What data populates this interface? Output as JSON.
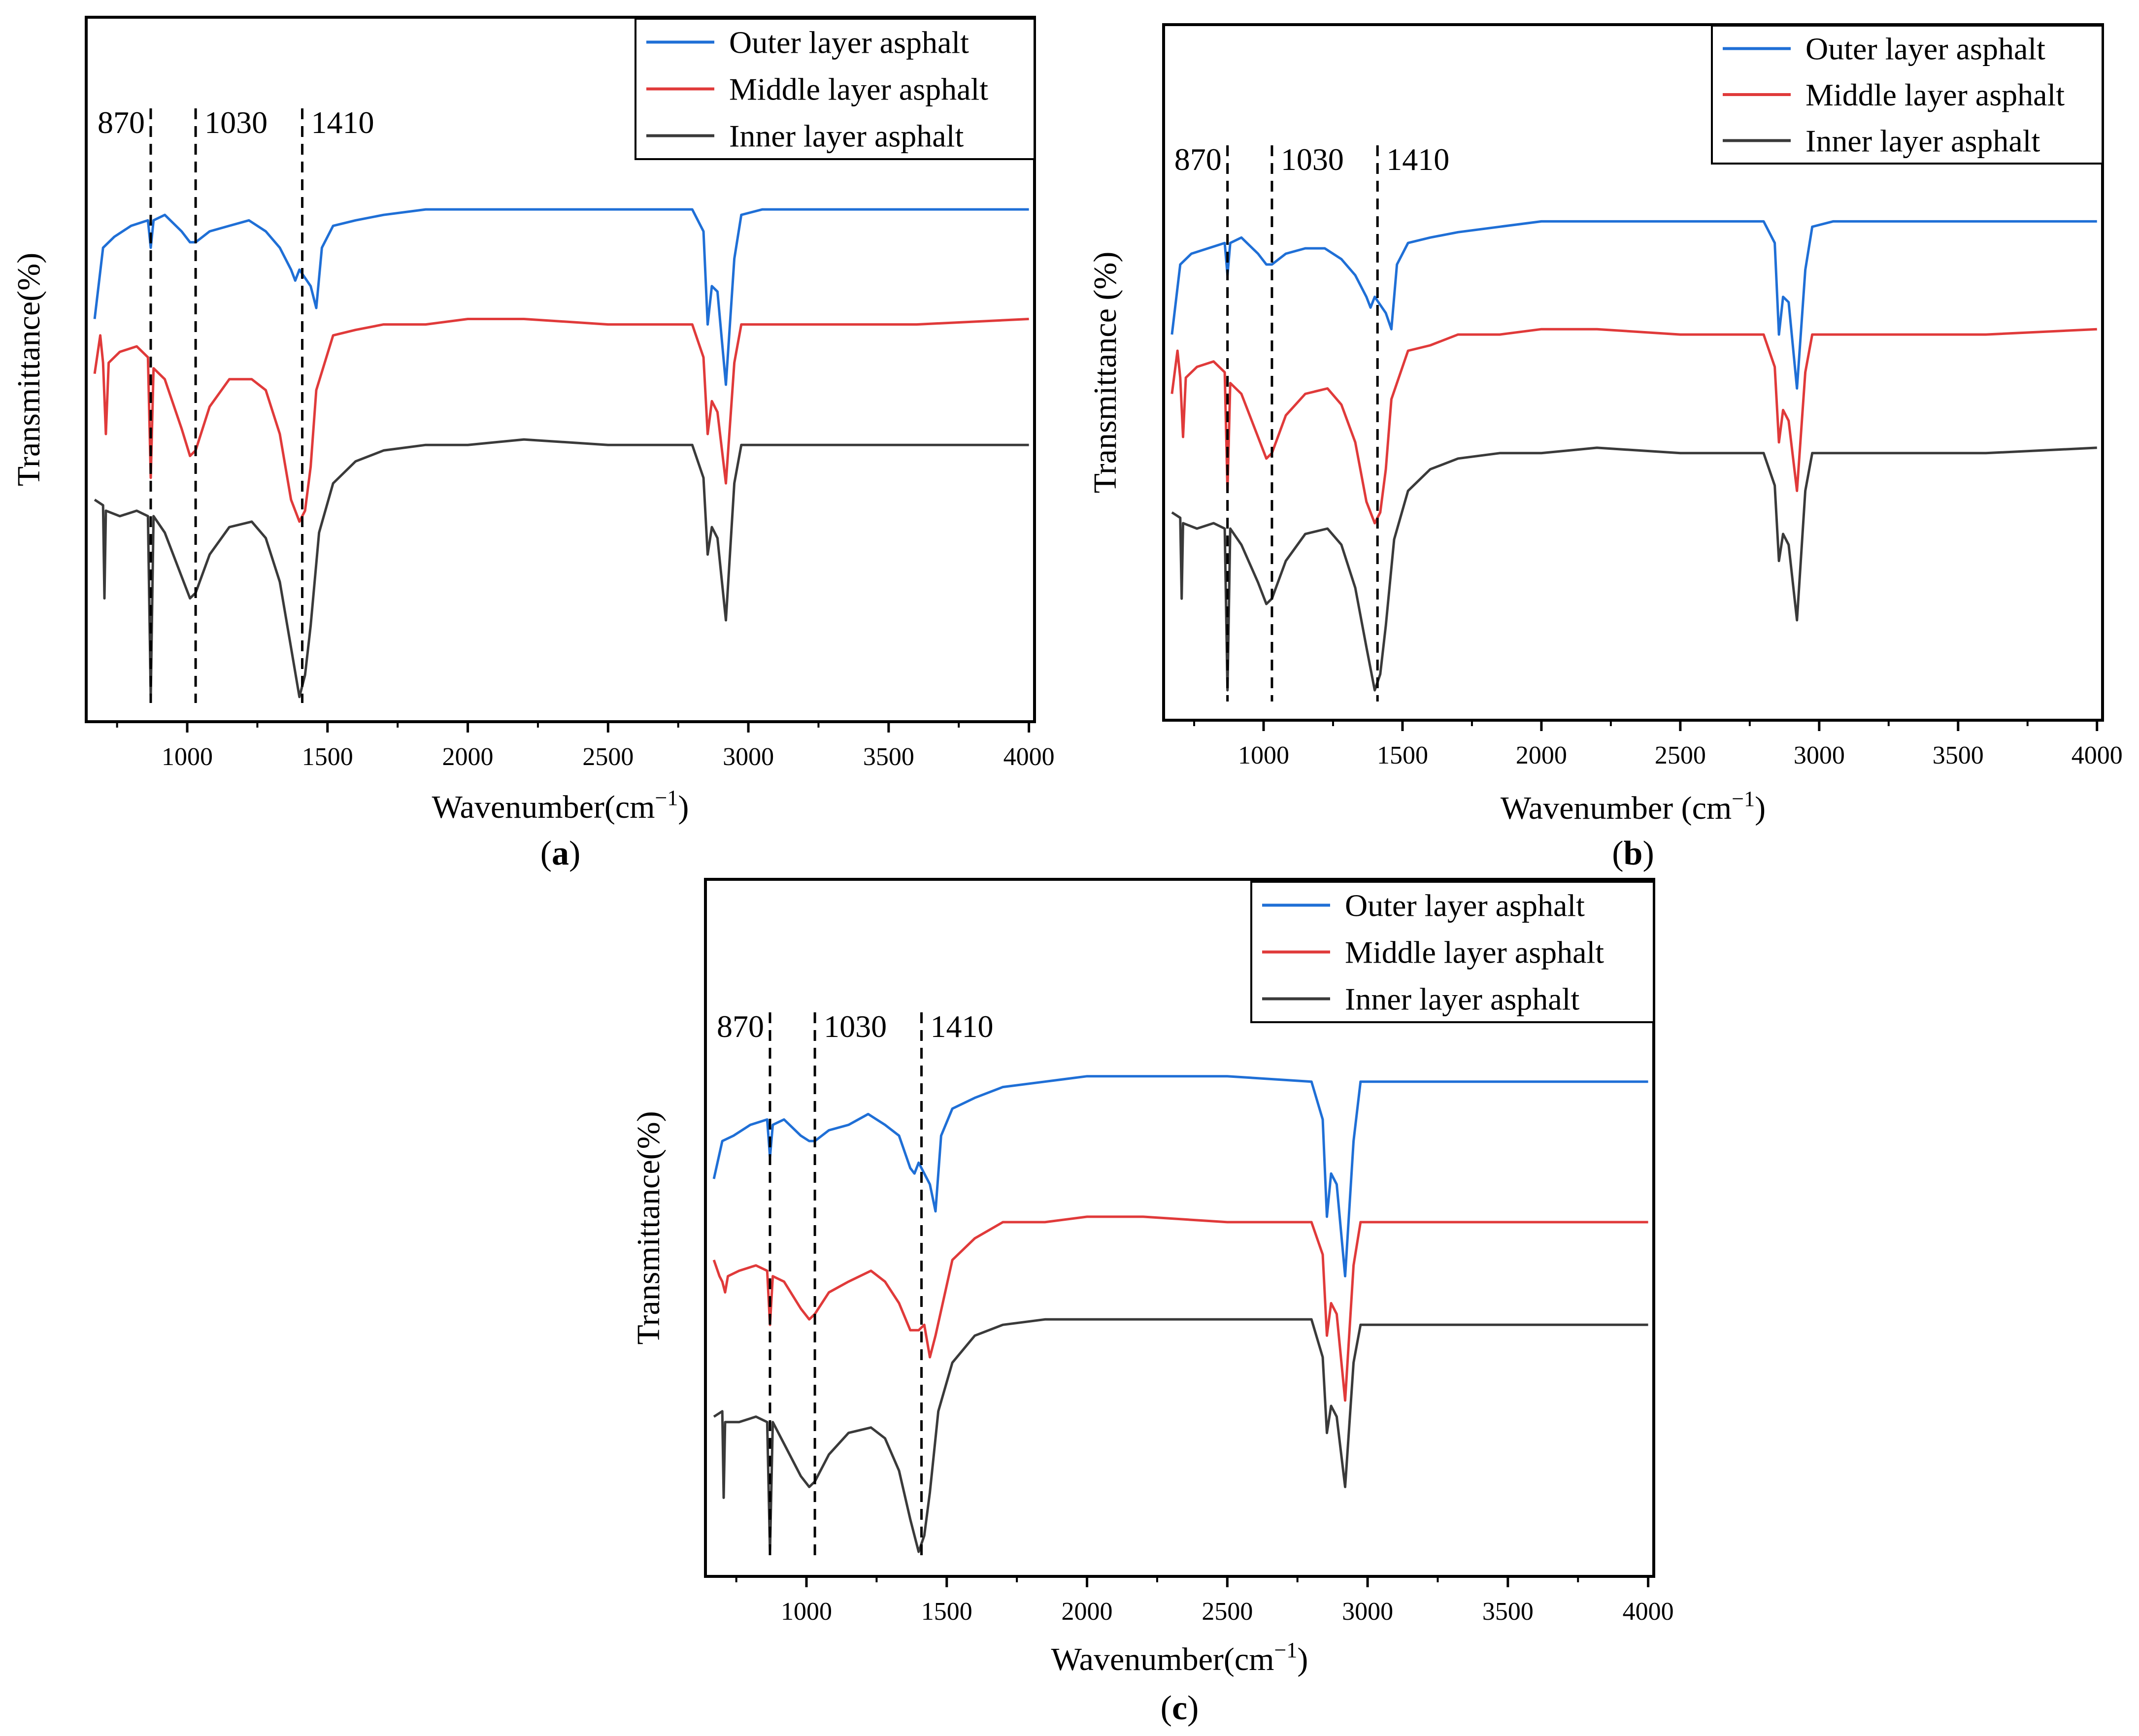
{
  "chart_data": [
    {
      "panel": "a",
      "type": "line",
      "panel_label": "(a)",
      "panel_letter": "a",
      "xlabel": "Wavenumber(cm",
      "xlabel_sup": "−1",
      "xlabel_close": ")",
      "ylabel": "Transmittance(%)",
      "xlim": [
        640,
        4020
      ],
      "ylim": [
        0,
        100
      ],
      "xticks": [
        1000,
        1500,
        2000,
        2500,
        3000,
        3500,
        4000
      ],
      "xtick_labels": [
        "1000",
        "1500",
        "2000",
        "2500",
        "3000",
        "3500",
        "4000"
      ],
      "peak_markers": [
        870,
        1030,
        1410
      ],
      "peak_labels": [
        "870",
        "1030",
        "1410"
      ],
      "legend": [
        "Outer layer asphalt",
        "Middle layer asphalt",
        "Inner layer asphalt"
      ],
      "series": [
        {
          "name": "Outer layer asphalt",
          "color": "#1f6fd6",
          "x": [
            670,
            700,
            740,
            800,
            860,
            870,
            880,
            920,
            980,
            1010,
            1030,
            1080,
            1150,
            1220,
            1280,
            1330,
            1370,
            1385,
            1400,
            1440,
            1460,
            1480,
            1520,
            1600,
            1700,
            1850,
            2000,
            2200,
            2500,
            2800,
            2840,
            2855,
            2870,
            2890,
            2920,
            2950,
            2975,
            3050,
            3300,
            3600,
            4000
          ],
          "y": [
            71,
            84,
            86,
            88,
            89,
            84,
            89,
            90,
            87,
            85,
            85,
            87,
            88,
            89,
            87,
            84,
            80,
            78,
            80,
            77,
            73,
            84,
            88,
            89,
            90,
            91,
            91,
            91,
            91,
            91,
            87,
            70,
            77,
            76,
            59,
            82,
            90,
            91,
            91,
            91,
            91
          ]
        },
        {
          "name": "Middle layer asphalt",
          "color": "#e03a3a",
          "x": [
            670,
            690,
            700,
            710,
            720,
            760,
            820,
            860,
            870,
            880,
            920,
            980,
            1010,
            1030,
            1080,
            1150,
            1230,
            1280,
            1330,
            1370,
            1400,
            1420,
            1440,
            1460,
            1520,
            1600,
            1700,
            1850,
            2000,
            2200,
            2500,
            2800,
            2840,
            2855,
            2870,
            2890,
            2920,
            2950,
            2975,
            3050,
            3300,
            3600,
            4000
          ],
          "y": [
            61,
            68,
            63,
            50,
            63,
            65,
            66,
            64,
            42,
            62,
            60,
            51,
            46,
            47,
            55,
            60,
            60,
            58,
            50,
            38,
            34,
            36,
            44,
            58,
            68,
            69,
            70,
            70,
            71,
            71,
            70,
            70,
            64,
            50,
            56,
            54,
            41,
            63,
            70,
            70,
            70,
            70,
            71
          ]
        },
        {
          "name": "Inner layer asphalt",
          "color": "#3a3a3a",
          "x": [
            670,
            700,
            705,
            710,
            760,
            820,
            860,
            870,
            880,
            920,
            980,
            1010,
            1030,
            1080,
            1150,
            1230,
            1280,
            1330,
            1370,
            1400,
            1420,
            1440,
            1470,
            1520,
            1600,
            1700,
            1850,
            2000,
            2200,
            2500,
            2800,
            2840,
            2855,
            2870,
            2890,
            2920,
            2950,
            2975,
            3050,
            3300,
            3600,
            4000
          ],
          "y": [
            38,
            37,
            20,
            36,
            35,
            36,
            35,
            2,
            35,
            32,
            24,
            20,
            21,
            28,
            33,
            34,
            31,
            23,
            11,
            2,
            6,
            15,
            32,
            41,
            45,
            47,
            48,
            48,
            49,
            48,
            48,
            42,
            28,
            33,
            31,
            16,
            41,
            48,
            48,
            48,
            48,
            48
          ]
        }
      ]
    },
    {
      "panel": "b",
      "type": "line",
      "panel_label": "(b)",
      "panel_letter": "b",
      "xlabel": "Wavenumber (cm",
      "xlabel_sup": "−1",
      "xlabel_close": ")",
      "ylabel": "Transmittance (%)",
      "xlim": [
        640,
        4020
      ],
      "ylim": [
        0,
        100
      ],
      "xticks": [
        1000,
        1500,
        2000,
        2500,
        3000,
        3500,
        4000
      ],
      "xtick_labels": [
        "1000",
        "1500",
        "2000",
        "2500",
        "3000",
        "3500",
        "4000"
      ],
      "peak_markers": [
        870,
        1030,
        1410
      ],
      "peak_labels": [
        "870",
        "1030",
        "1410"
      ],
      "legend": [
        "Outer layer asphalt",
        "Middle layer asphalt",
        "Inner layer asphalt"
      ],
      "series": [
        {
          "name": "Outer layer asphalt",
          "color": "#1f6fd6",
          "x": [
            670,
            700,
            740,
            800,
            860,
            870,
            880,
            920,
            980,
            1010,
            1030,
            1080,
            1150,
            1220,
            1280,
            1330,
            1370,
            1385,
            1400,
            1440,
            1460,
            1480,
            1520,
            1600,
            1700,
            1850,
            2000,
            2200,
            2500,
            2800,
            2840,
            2855,
            2870,
            2890,
            2920,
            2950,
            2975,
            3050,
            3300,
            3600,
            4000
          ],
          "y": [
            69,
            82,
            84,
            85,
            86,
            80,
            86,
            87,
            84,
            82,
            82,
            84,
            85,
            85,
            83,
            80,
            76,
            74,
            76,
            73,
            70,
            82,
            86,
            87,
            88,
            89,
            90,
            90,
            90,
            90,
            86,
            69,
            76,
            75,
            59,
            81,
            89,
            90,
            90,
            90,
            90
          ]
        },
        {
          "name": "Middle layer asphalt",
          "color": "#e03a3a",
          "x": [
            670,
            690,
            700,
            710,
            720,
            760,
            820,
            860,
            870,
            880,
            920,
            980,
            1010,
            1030,
            1080,
            1150,
            1230,
            1280,
            1330,
            1370,
            1400,
            1420,
            1440,
            1460,
            1520,
            1600,
            1700,
            1850,
            2000,
            2200,
            2500,
            2800,
            2840,
            2855,
            2870,
            2890,
            2920,
            2950,
            2975,
            3050,
            3300,
            3600,
            4000
          ],
          "y": [
            58,
            66,
            61,
            50,
            61,
            63,
            64,
            62,
            40,
            60,
            58,
            50,
            46,
            47,
            54,
            58,
            59,
            56,
            49,
            38,
            34,
            36,
            44,
            57,
            66,
            67,
            69,
            69,
            70,
            70,
            69,
            69,
            63,
            49,
            55,
            53,
            40,
            62,
            69,
            69,
            69,
            69,
            70
          ]
        },
        {
          "name": "Inner layer asphalt",
          "color": "#3a3a3a",
          "x": [
            670,
            700,
            705,
            710,
            760,
            820,
            860,
            870,
            880,
            920,
            980,
            1010,
            1030,
            1080,
            1150,
            1230,
            1280,
            1330,
            1370,
            1400,
            1420,
            1440,
            1470,
            1520,
            1600,
            1700,
            1850,
            2000,
            2200,
            2500,
            2800,
            2840,
            2855,
            2870,
            2890,
            2920,
            2950,
            2975,
            3050,
            3300,
            3600,
            4000
          ],
          "y": [
            36,
            35,
            20,
            34,
            33,
            34,
            33,
            3,
            33,
            30,
            23,
            19,
            20,
            27,
            32,
            33,
            30,
            22,
            11,
            3,
            6,
            15,
            31,
            40,
            44,
            46,
            47,
            47,
            48,
            47,
            47,
            41,
            27,
            32,
            30,
            16,
            40,
            47,
            47,
            47,
            47,
            48
          ]
        }
      ]
    },
    {
      "panel": "c",
      "type": "line",
      "panel_label": "(c)",
      "panel_letter": "c",
      "xlabel": "Wavenumber(cm",
      "xlabel_sup": "−1",
      "xlabel_close": ")",
      "ylabel": "Transmittance(%)",
      "xlim": [
        640,
        4020
      ],
      "ylim": [
        0,
        100
      ],
      "xticks": [
        1000,
        1500,
        2000,
        2500,
        3000,
        3500,
        4000
      ],
      "xtick_labels": [
        "1000",
        "1500",
        "2000",
        "2500",
        "3000",
        "3500",
        "4000"
      ],
      "peak_markers": [
        870,
        1030,
        1410
      ],
      "peak_labels": [
        "870",
        "1030",
        "1410"
      ],
      "legend": [
        "Outer layer asphalt",
        "Middle layer asphalt",
        "Inner layer asphalt"
      ],
      "series": [
        {
          "name": "Outer layer asphalt",
          "color": "#1f6fd6",
          "x": [
            670,
            700,
            740,
            800,
            860,
            870,
            880,
            920,
            980,
            1010,
            1030,
            1080,
            1150,
            1220,
            1280,
            1330,
            1370,
            1385,
            1400,
            1440,
            1460,
            1480,
            1520,
            1600,
            1700,
            1850,
            2000,
            2200,
            2500,
            2800,
            2840,
            2855,
            2870,
            2890,
            2920,
            2950,
            2975,
            3050,
            3300,
            3600,
            4000
          ],
          "y": [
            71,
            78,
            79,
            81,
            82,
            75,
            81,
            82,
            79,
            78,
            78,
            80,
            81,
            83,
            81,
            79,
            73,
            72,
            74,
            70,
            65,
            79,
            84,
            86,
            88,
            89,
            90,
            90,
            90,
            89,
            82,
            64,
            72,
            70,
            53,
            78,
            89,
            89,
            89,
            89,
            89
          ]
        },
        {
          "name": "Middle layer asphalt",
          "color": "#e03a3a",
          "x": [
            670,
            690,
            700,
            710,
            720,
            760,
            820,
            860,
            870,
            880,
            920,
            980,
            1010,
            1030,
            1080,
            1150,
            1230,
            1280,
            1330,
            1370,
            1400,
            1420,
            1440,
            1460,
            1520,
            1600,
            1700,
            1850,
            2000,
            2200,
            2500,
            2800,
            2840,
            2855,
            2870,
            2890,
            2920,
            2950,
            2975,
            3050,
            3300,
            3600,
            4000
          ],
          "y": [
            56,
            53,
            52,
            50,
            53,
            54,
            55,
            54,
            44,
            53,
            52,
            47,
            45,
            46,
            50,
            52,
            54,
            52,
            48,
            43,
            43,
            44,
            38,
            42,
            56,
            60,
            63,
            63,
            64,
            64,
            63,
            63,
            57,
            42,
            48,
            46,
            30,
            55,
            63,
            63,
            63,
            63,
            63
          ]
        },
        {
          "name": "Inner layer asphalt",
          "color": "#3a3a3a",
          "x": [
            670,
            700,
            705,
            710,
            760,
            820,
            860,
            870,
            880,
            920,
            980,
            1010,
            1030,
            1080,
            1150,
            1230,
            1280,
            1330,
            1370,
            1400,
            1420,
            1440,
            1470,
            1520,
            1600,
            1700,
            1850,
            2000,
            2200,
            2500,
            2800,
            2840,
            2855,
            2870,
            2890,
            2920,
            2950,
            2975,
            3050,
            3300,
            3600,
            4000
          ],
          "y": [
            27,
            28,
            12,
            26,
            26,
            27,
            26,
            2,
            26,
            22,
            16,
            14,
            15,
            20,
            24,
            25,
            23,
            17,
            8,
            2,
            5,
            13,
            28,
            37,
            42,
            44,
            45,
            45,
            45,
            45,
            45,
            38,
            24,
            29,
            27,
            14,
            37,
            44,
            44,
            44,
            44,
            44
          ]
        }
      ]
    }
  ]
}
